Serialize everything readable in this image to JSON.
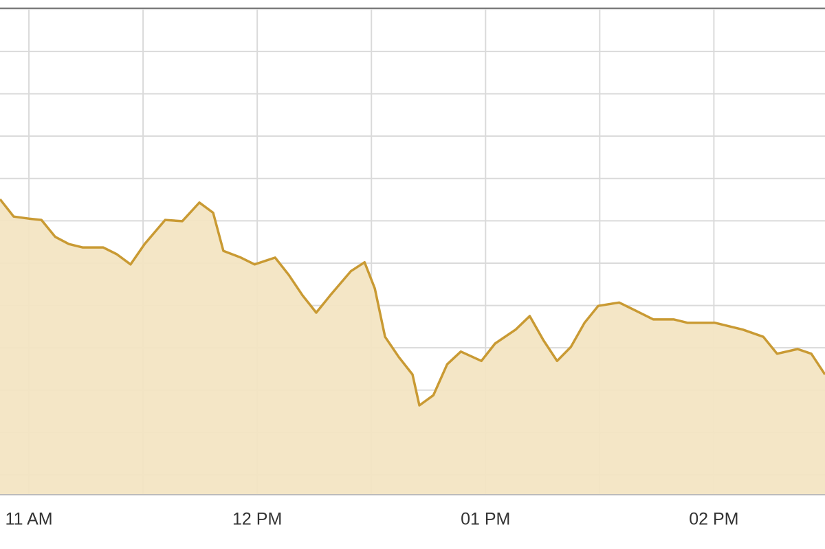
{
  "chart_data": {
    "type": "area",
    "x": [
      652.4,
      656.0,
      660,
      663.3,
      666.9,
      670.5,
      674.1,
      679.5,
      683.1,
      686.7,
      690.4,
      695.8,
      700.3,
      704.8,
      708.4,
      711.1,
      715.7,
      719.3,
      724.7,
      728.3,
      731.9,
      735.5,
      739.2,
      744.6,
      748.2,
      750.9,
      753.6,
      757.2,
      760.8,
      762.6,
      766.3,
      769.9,
      773.5,
      778.9,
      782.5,
      787.9,
      791.6,
      795.2,
      798.8,
      802.4,
      806.0,
      809.6,
      815.1,
      818.7,
      824.1,
      829.5,
      833.1,
      840.3,
      847.6,
      853.0,
      856.6,
      862.0,
      865.6,
      869.2
    ],
    "values": [
      6.51,
      6.1,
      6.05,
      6.02,
      5.62,
      5.45,
      5.37,
      5.37,
      5.21,
      4.97,
      5.45,
      6.02,
      5.99,
      6.43,
      6.19,
      5.29,
      5.13,
      4.97,
      5.13,
      4.72,
      4.24,
      3.83,
      4.24,
      4.81,
      5.02,
      4.4,
      3.26,
      2.78,
      2.37,
      1.64,
      1.88,
      2.61,
      2.91,
      2.69,
      3.1,
      3.43,
      3.75,
      3.18,
      2.69,
      3.02,
      3.59,
      3.99,
      4.07,
      3.91,
      3.67,
      3.67,
      3.59,
      3.59,
      3.43,
      3.26,
      2.86,
      2.97,
      2.86,
      2.37
    ],
    "color": "#c99a33",
    "fill": "#f3e5c3",
    "xlim": [
      652.4,
      869.2
    ],
    "ylim": [
      -0.47,
      11.02
    ],
    "xticks": [
      {
        "value": 660,
        "label": "11 AM"
      },
      {
        "value": 720,
        "label": "12 PM"
      },
      {
        "value": 780,
        "label": "01 PM"
      },
      {
        "value": 840,
        "label": "02 PM"
      }
    ],
    "grid": true
  }
}
